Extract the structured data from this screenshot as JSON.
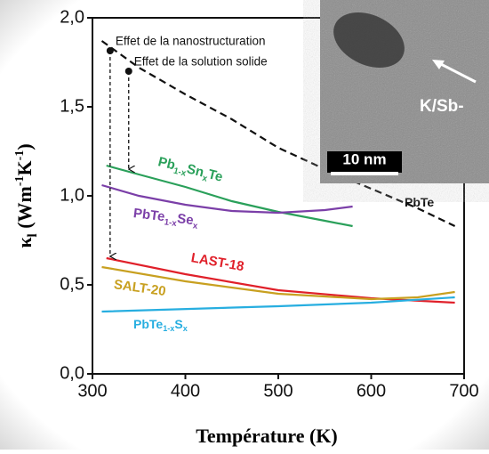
{
  "chart_data": {
    "type": "line",
    "x_label": "Température (K)",
    "y_label": "κl (Wm-1K-1)",
    "xlim": [
      300,
      700
    ],
    "xticks": [
      300,
      400,
      500,
      600,
      700
    ],
    "ylim": [
      0,
      2
    ],
    "yticks": [
      {
        "value": 0,
        "label": "0,0"
      },
      {
        "value": 0.5,
        "label": "0,5"
      },
      {
        "value": 1,
        "label": "1,0"
      },
      {
        "value": 1.5,
        "label": "1,5"
      },
      {
        "value": 2,
        "label": "2,0"
      }
    ],
    "series": [
      {
        "name": "PbTe",
        "color": "#111111",
        "dashed": true,
        "x": [
          310,
          350,
          400,
          450,
          500,
          550,
          600,
          650,
          690
        ],
        "values": [
          1.87,
          1.72,
          1.57,
          1.43,
          1.27,
          1.15,
          1.04,
          0.93,
          0.83
        ]
      },
      {
        "name": "Pb1-xSnxTe",
        "color": "#2aa05a",
        "x": [
          315,
          350,
          400,
          450,
          500,
          550,
          580
        ],
        "values": [
          1.17,
          1.12,
          1.05,
          0.97,
          0.91,
          0.86,
          0.83
        ]
      },
      {
        "name": "PbTe1-xSex",
        "color": "#7b3fa8",
        "x": [
          310,
          350,
          400,
          450,
          500,
          550,
          580
        ],
        "values": [
          1.06,
          1.0,
          0.95,
          0.915,
          0.905,
          0.92,
          0.94
        ]
      },
      {
        "name": "LAST-18",
        "color": "#e0202a",
        "x": [
          315,
          400,
          500,
          600,
          690
        ],
        "values": [
          0.65,
          0.56,
          0.47,
          0.425,
          0.4
        ]
      },
      {
        "name": "SALT-20",
        "color": "#c8a020",
        "x": [
          310,
          400,
          500,
          600,
          650,
          690
        ],
        "values": [
          0.6,
          0.52,
          0.45,
          0.42,
          0.43,
          0.46
        ]
      },
      {
        "name": "PbTe1-xSx",
        "color": "#27aee0",
        "x": [
          310,
          500,
          600,
          690
        ],
        "values": [
          0.35,
          0.38,
          0.4,
          0.43
        ]
      }
    ],
    "annotations": [
      {
        "text": "Effet de la nanostructuration",
        "x": 319,
        "y": 1.815,
        "y_end": 0.66
      },
      {
        "text": "Effet de la solution solide",
        "x": 339,
        "y": 1.7,
        "y_end": 1.15
      }
    ]
  },
  "inset": {
    "label": "K/Sb-",
    "scale_bar": "10 nm"
  }
}
